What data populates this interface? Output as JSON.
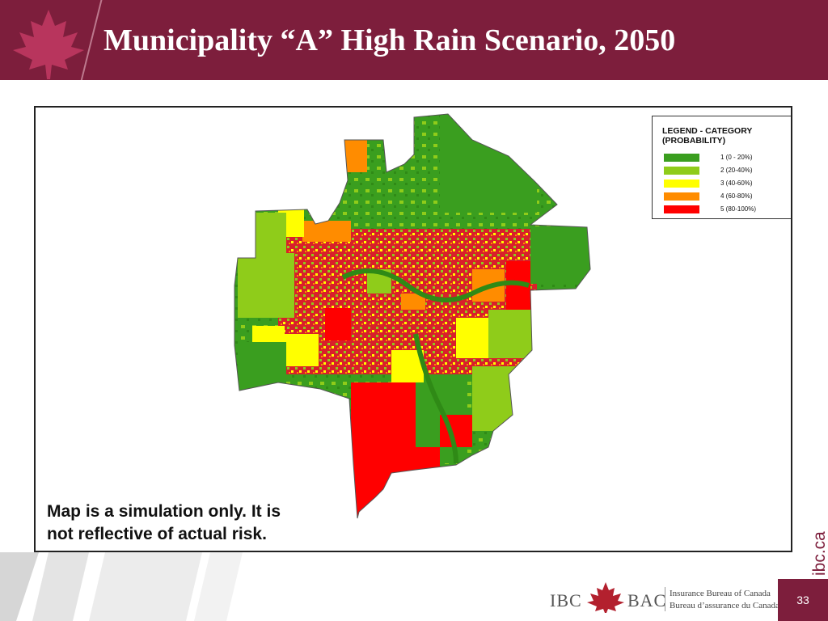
{
  "slide": {
    "title": "Municipality “A” High Rain Scenario, 2050",
    "disclaimer_line1": "Map is a simulation only. It is",
    "disclaimer_line2": "not reflective of actual risk.",
    "page_number": "33",
    "side_brand": "ibc.ca"
  },
  "legend": {
    "title_line1": "LEGEND - CATEGORY",
    "title_line2": "(PROBABILITY)",
    "items": [
      {
        "label": "1 (0 - 20%)",
        "color": "#3a9e1f"
      },
      {
        "label": "2 (20-40%)",
        "color": "#8fcc1a"
      },
      {
        "label": "3 (40-60%)",
        "color": "#ffff00"
      },
      {
        "label": "4 (60-80%)",
        "color": "#ff8c00"
      },
      {
        "label": "5 (80-100%)",
        "color": "#ff0000"
      }
    ]
  },
  "footer_logo": {
    "left_text": "IBC",
    "right_text": "BAC",
    "name_en": "Insurance Bureau of Canada",
    "name_fr": "Bureau d’assurance du Canada"
  },
  "colors": {
    "brand": "#7d1e3c"
  },
  "icons": {
    "header": "maple-leaf-icon",
    "footer": "maple-leaf-icon"
  }
}
